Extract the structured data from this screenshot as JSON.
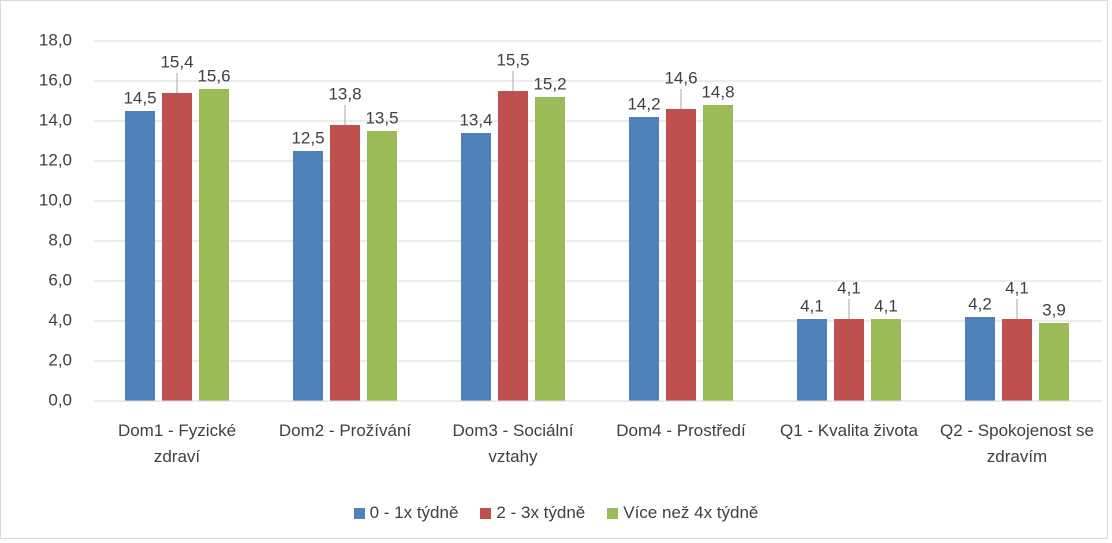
{
  "chart_data": {
    "type": "bar",
    "categories": [
      "Dom1 - Fyzické zdraví",
      "Dom2 - Prožívání",
      "Dom3 - Sociální vztahy",
      "Dom4 - Prostředí",
      "Q1 - Kvalita života",
      "Q2 - Spokojenost se zdravím"
    ],
    "series": [
      {
        "name": "0 - 1x týdně",
        "color": "#4f81bd",
        "values": [
          14.5,
          12.5,
          13.4,
          14.2,
          4.1,
          4.2
        ],
        "value_labels": [
          "14,5",
          "12,5",
          "13,4",
          "14,2",
          "4,1",
          "4,2"
        ]
      },
      {
        "name": "2 - 3x týdně",
        "color": "#c0504d",
        "values": [
          15.4,
          13.8,
          15.5,
          14.6,
          4.1,
          4.1
        ],
        "value_labels": [
          "15,4",
          "13,8",
          "15,5",
          "14,6",
          "4,1",
          "4,1"
        ]
      },
      {
        "name": "Více než 4x týdně",
        "color": "#9bbb59",
        "values": [
          15.6,
          13.5,
          15.2,
          14.8,
          4.1,
          3.9
        ],
        "value_labels": [
          "15,6",
          "13,5",
          "15,2",
          "14,8",
          "4,1",
          "3,9"
        ]
      }
    ],
    "ylim": [
      0,
      18
    ],
    "yticks": [
      {
        "value": 0,
        "label": "0,0"
      },
      {
        "value": 2,
        "label": "2,0"
      },
      {
        "value": 4,
        "label": "4,0"
      },
      {
        "value": 6,
        "label": "6,0"
      },
      {
        "value": 8,
        "label": "8,0"
      },
      {
        "value": 10,
        "label": "10,0"
      },
      {
        "value": 12,
        "label": "12,0"
      },
      {
        "value": 14,
        "label": "14,0"
      },
      {
        "value": 16,
        "label": "16,0"
      },
      {
        "value": 18,
        "label": "18,0"
      }
    ],
    "grid": true,
    "legend": "bottom"
  }
}
